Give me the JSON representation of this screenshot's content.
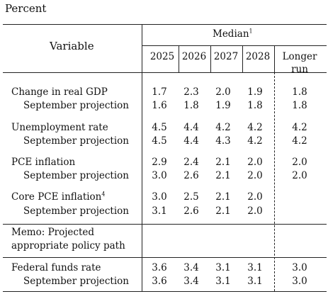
{
  "unit_label": "Percent",
  "header": {
    "variable": "Variable",
    "median": "Median",
    "median_footnote": "1",
    "years": [
      "2025",
      "2026",
      "2027",
      "2028"
    ],
    "longer_run_line1": "Longer",
    "longer_run_line2": "run"
  },
  "rows": {
    "gdp": {
      "label": "Change in real GDP",
      "values": [
        "1.7",
        "2.3",
        "2.0",
        "1.9"
      ],
      "longer": "1.8",
      "sep_label": "September projection",
      "sep_values": [
        "1.6",
        "1.8",
        "1.9",
        "1.8"
      ],
      "sep_longer": "1.8"
    },
    "unemp": {
      "label": "Unemployment rate",
      "values": [
        "4.5",
        "4.4",
        "4.2",
        "4.2"
      ],
      "longer": "4.2",
      "sep_label": "September projection",
      "sep_values": [
        "4.5",
        "4.4",
        "4.3",
        "4.2"
      ],
      "sep_longer": "4.2"
    },
    "pce": {
      "label": "PCE inflation",
      "values": [
        "2.9",
        "2.4",
        "2.1",
        "2.0"
      ],
      "longer": "2.0",
      "sep_label": "September projection",
      "sep_values": [
        "3.0",
        "2.6",
        "2.1",
        "2.0"
      ],
      "sep_longer": "2.0"
    },
    "core": {
      "label": "Core PCE inflation",
      "footnote": "4",
      "values": [
        "3.0",
        "2.5",
        "2.1",
        "2.0"
      ],
      "sep_label": "September projection",
      "sep_values": [
        "3.1",
        "2.6",
        "2.1",
        "2.0"
      ]
    },
    "ffr": {
      "label": "Federal funds rate",
      "values": [
        "3.6",
        "3.4",
        "3.1",
        "3.1"
      ],
      "longer": "3.0",
      "sep_label": "September projection",
      "sep_values": [
        "3.6",
        "3.4",
        "3.1",
        "3.1"
      ],
      "sep_longer": "3.0"
    }
  },
  "memo": {
    "line1": "Memo: Projected",
    "line2": "appropriate policy path"
  }
}
